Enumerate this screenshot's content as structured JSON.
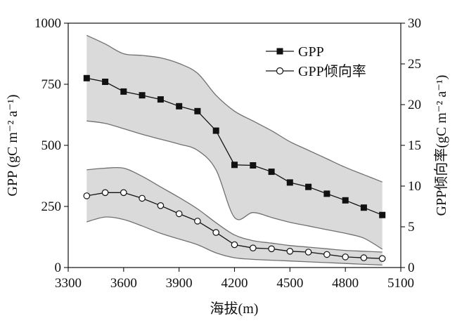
{
  "chart_data": {
    "type": "line",
    "xlabel": "海拔(m)",
    "ylabel_left": "GPP (gC m⁻² a⁻¹)",
    "ylabel_right": "GPP倾向率(gC m⁻² a⁻¹)",
    "xlim": [
      3300,
      5100
    ],
    "ylim_left": [
      0,
      1000
    ],
    "ylim_right": [
      0,
      30
    ],
    "xticks": [
      3300,
      3600,
      3900,
      4200,
      4500,
      4800,
      5100
    ],
    "yticks_left": [
      0,
      250,
      500,
      750,
      1000
    ],
    "yticks_right": [
      0,
      5,
      10,
      15,
      20,
      25,
      30
    ],
    "grid": false,
    "legend_position": "top-right",
    "x": [
      3400,
      3500,
      3600,
      3700,
      3800,
      3900,
      4000,
      4100,
      4200,
      4300,
      4400,
      4500,
      4600,
      4700,
      4800,
      4900,
      5000
    ],
    "series": [
      {
        "name": "GPP",
        "axis": "left",
        "marker": "filled-square",
        "values": [
          775,
          760,
          720,
          705,
          688,
          660,
          640,
          560,
          420,
          418,
          392,
          348,
          330,
          302,
          275,
          245,
          215
        ],
        "band_upper": [
          950,
          915,
          875,
          868,
          858,
          835,
          795,
          705,
          640,
          600,
          560,
          515,
          480,
          445,
          410,
          380,
          350
        ],
        "band_lower": [
          600,
          590,
          568,
          545,
          525,
          505,
          480,
          400,
          205,
          225,
          205,
          185,
          170,
          155,
          140,
          120,
          75
        ]
      },
      {
        "name": "GPP倾向率",
        "axis": "right",
        "marker": "open-circle",
        "values": [
          8.8,
          9.2,
          9.2,
          8.5,
          7.6,
          6.6,
          5.7,
          4.3,
          2.8,
          2.4,
          2.3,
          2.0,
          1.9,
          1.6,
          1.3,
          1.2,
          1.1
        ],
        "band_upper": [
          12.0,
          12.2,
          12.2,
          11.2,
          9.9,
          8.6,
          7.2,
          5.5,
          4.0,
          3.3,
          3.0,
          2.7,
          2.5,
          2.3,
          2.1,
          2.0,
          1.9
        ],
        "band_lower": [
          5.6,
          6.2,
          5.9,
          5.1,
          4.2,
          3.5,
          2.8,
          1.8,
          1.2,
          1.0,
          0.9,
          0.8,
          0.7,
          0.6,
          0.5,
          0.4,
          0.3
        ]
      }
    ],
    "colors": {
      "band_fill": "#dadada",
      "band_edge": "#707070",
      "line": "#111111"
    }
  }
}
